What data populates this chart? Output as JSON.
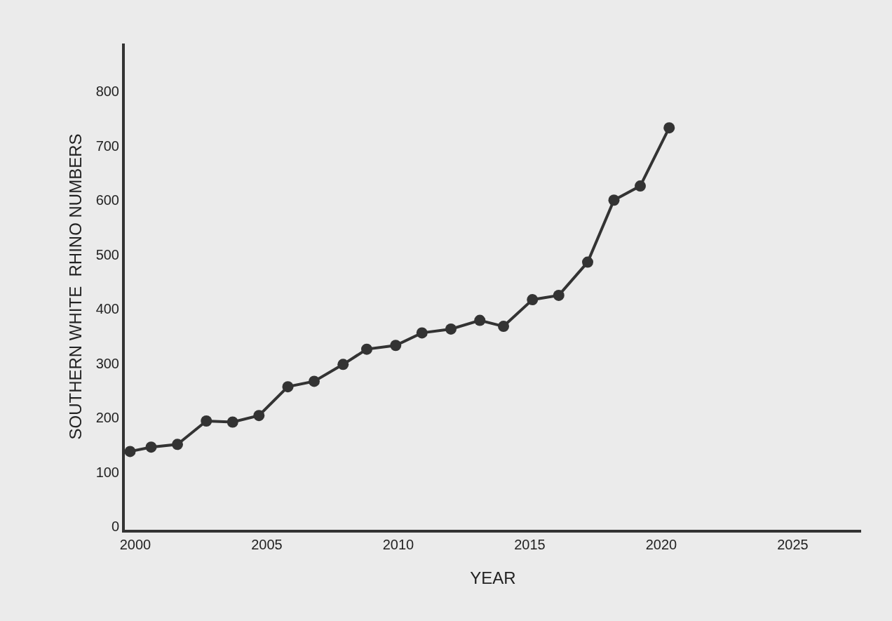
{
  "chart_data": {
    "type": "line",
    "xlabel": "YEAR",
    "ylabel": "SOUTHERN WHITE  RHINO NUMBERS",
    "x": [
      1999.8,
      2000.6,
      2001.6,
      2002.7,
      2003.7,
      2004.7,
      2005.8,
      2006.8,
      2007.9,
      2008.8,
      2009.9,
      2010.9,
      2012.0,
      2013.1,
      2014.0,
      2015.1,
      2016.1,
      2017.2,
      2018.2,
      2019.2,
      2020.3
    ],
    "series": [
      {
        "color": "#333333",
        "values": [
          138,
          146,
          151,
          194,
          192,
          204,
          257,
          267,
          298,
          326,
          333,
          356,
          363,
          379,
          368,
          417,
          425,
          486,
          600,
          626,
          733
        ]
      }
    ],
    "xlim": [
      1999.6,
      2027.6
    ],
    "xticks": [
      2000,
      2005,
      2010,
      2015,
      2020,
      2025
    ],
    "ylim": [
      -6,
      888
    ],
    "yticks": [
      0,
      100,
      200,
      300,
      400,
      500,
      600,
      700,
      800
    ],
    "grid": false,
    "marker": "circle",
    "line_style": "solid"
  }
}
